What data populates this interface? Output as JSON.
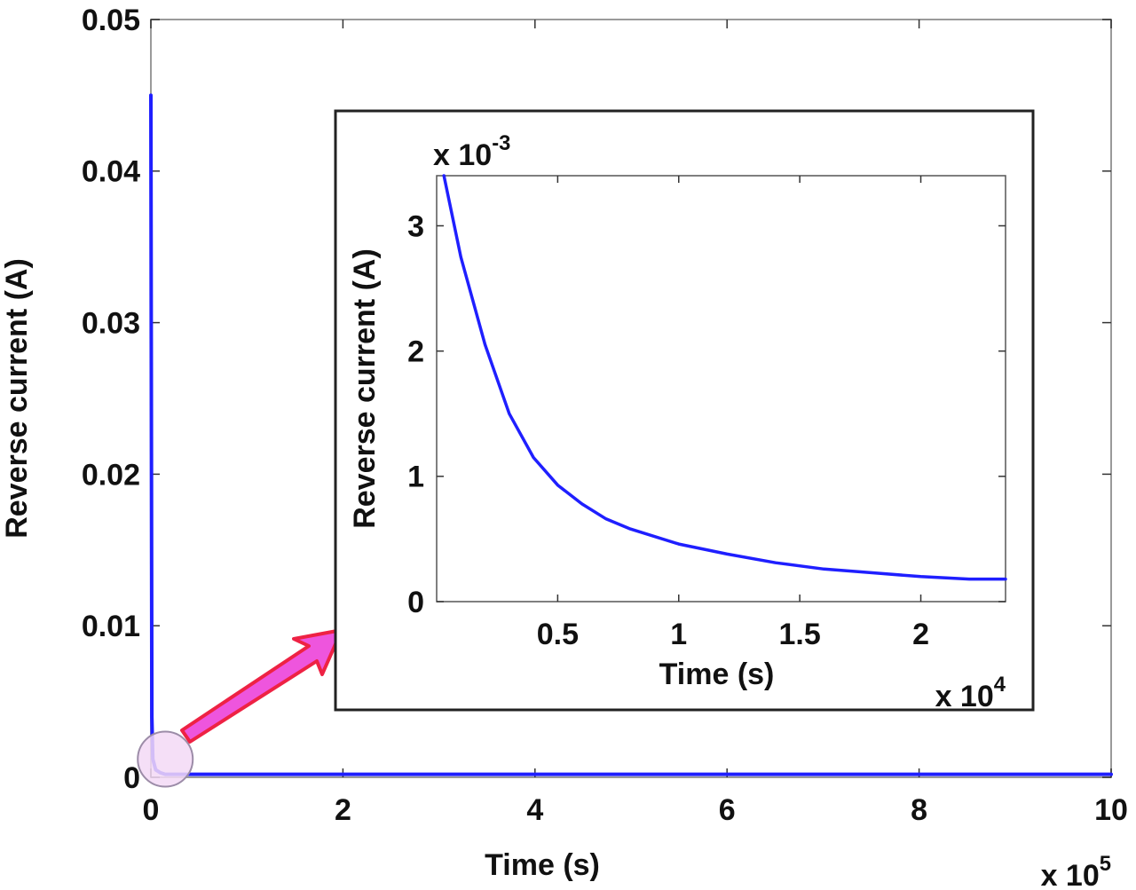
{
  "chart_data": [
    {
      "type": "line",
      "title": "",
      "xlabel": "Time (s)",
      "ylabel": "Reverse current (A)",
      "x_multiplier": "x 10",
      "x_multiplier_exp": "5",
      "xlim": [
        0,
        10
      ],
      "ylim": [
        0,
        0.05
      ],
      "xticks": [
        0,
        2,
        4,
        6,
        8,
        10
      ],
      "xtick_labels": [
        "0",
        "2",
        "4",
        "6",
        "8",
        "10"
      ],
      "yticks": [
        0,
        0.01,
        0.02,
        0.03,
        0.04,
        0.05
      ],
      "ytick_labels": [
        "0",
        "0.01",
        "0.02",
        "0.03",
        "0.04",
        "0.05"
      ],
      "grid": false,
      "series": [
        {
          "color": "#1f1fff",
          "x": [
            0,
            0.01,
            0.02,
            0.05,
            0.1,
            0.15,
            0.2,
            0.25,
            2,
            5,
            10
          ],
          "y": [
            0.045,
            0.004,
            0.0012,
            0.0005,
            0.0003,
            0.0002,
            0.0002,
            0.0002,
            0.0002,
            0.0002,
            0.0002
          ]
        }
      ]
    },
    {
      "type": "line",
      "title": "",
      "xlabel": "Time (s)",
      "ylabel": "Reverse current (A)",
      "x_multiplier": "x 10",
      "x_multiplier_exp": "4",
      "y_multiplier": "x 10",
      "y_multiplier_exp": "-3",
      "xlim": [
        0,
        2.35
      ],
      "ylim": [
        0,
        3.4
      ],
      "xticks": [
        0.5,
        1,
        1.5,
        2
      ],
      "xtick_labels": [
        "0.5",
        "1",
        "1.5",
        "2"
      ],
      "yticks": [
        0,
        1,
        2,
        3
      ],
      "ytick_labels": [
        "0",
        "1",
        "2",
        "3"
      ],
      "grid": false,
      "series": [
        {
          "color": "#1f1fff",
          "x": [
            0.03,
            0.1,
            0.2,
            0.3,
            0.4,
            0.5,
            0.6,
            0.7,
            0.8,
            1.0,
            1.2,
            1.4,
            1.6,
            1.8,
            2.0,
            2.2,
            2.35
          ],
          "y": [
            3.4,
            2.75,
            2.05,
            1.5,
            1.15,
            0.93,
            0.78,
            0.66,
            0.58,
            0.46,
            0.38,
            0.31,
            0.26,
            0.23,
            0.2,
            0.18,
            0.18
          ]
        }
      ]
    }
  ],
  "annotation": {
    "circle_fill": "#f3d9f6",
    "circle_stroke": "#9c8ca8",
    "arrow_fill": "#ee55dd",
    "arrow_stroke": "#ee2244"
  }
}
